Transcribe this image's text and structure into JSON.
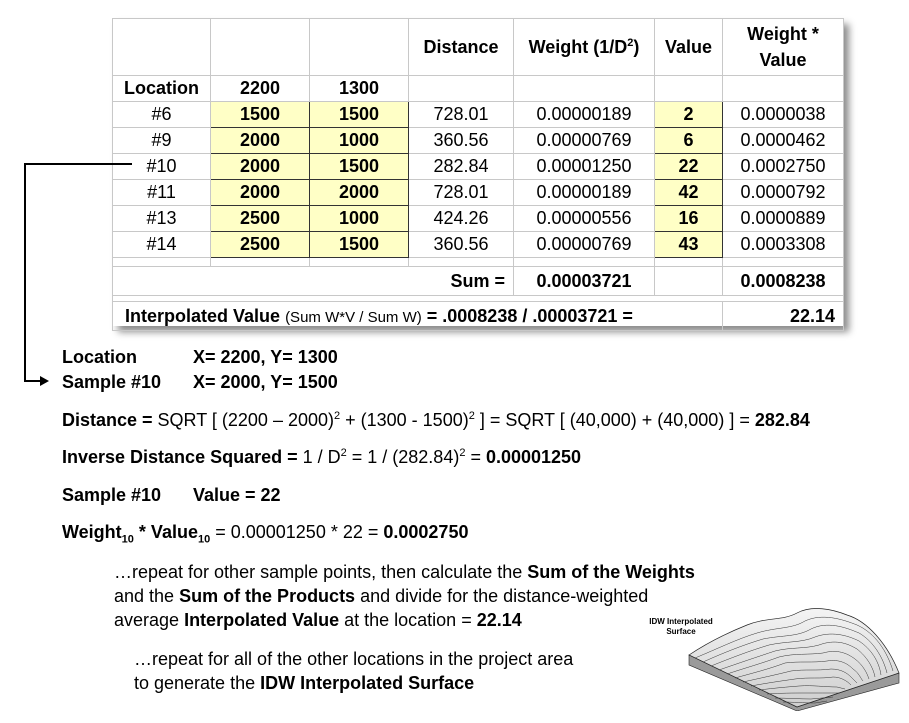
{
  "table": {
    "headers": {
      "distance": "Distance",
      "weight": "Weight (1/D",
      "weight_sup": "2",
      "weight_close": ")",
      "value": "Value",
      "wv_line1": "Weight *",
      "wv_line2": "Value"
    },
    "location_label": "Location",
    "location_x": "2200",
    "location_y": "1300",
    "rows": [
      {
        "id": "#6",
        "x": "1500",
        "y": "1500",
        "distance": "728.01",
        "weight": "0.00000189",
        "value": "2",
        "wv": "0.0000038"
      },
      {
        "id": "#9",
        "x": "2000",
        "y": "1000",
        "distance": "360.56",
        "weight": "0.00000769",
        "value": "6",
        "wv": "0.0000462"
      },
      {
        "id": "#10",
        "x": "2000",
        "y": "1500",
        "distance": "282.84",
        "weight": "0.00001250",
        "value": "22",
        "wv": "0.0002750"
      },
      {
        "id": "#11",
        "x": "2000",
        "y": "2000",
        "distance": "728.01",
        "weight": "0.00000189",
        "value": "42",
        "wv": "0.0000792"
      },
      {
        "id": "#13",
        "x": "2500",
        "y": "1000",
        "distance": "424.26",
        "weight": "0.00000556",
        "value": "16",
        "wv": "0.0000889"
      },
      {
        "id": "#14",
        "x": "2500",
        "y": "1500",
        "distance": "360.56",
        "weight": "0.00000769",
        "value": "43",
        "wv": "0.0003308"
      }
    ],
    "sum_label": "Sum =",
    "sum_weight": "0.00003721",
    "sum_wv": "0.0008238",
    "interp_label": "Interpolated Value",
    "interp_formula": "(Sum W*V / Sum W)",
    "interp_calc": "=  .0008238 / .00003721 =",
    "interp_result": "22.14"
  },
  "explain": {
    "location_label": "Location",
    "location_coords": "X= 2200, Y= 1300",
    "sample_label": "Sample #10",
    "sample_coords": "X= 2000, Y= 1500",
    "distance_label": "Distance =",
    "distance_a": " SQRT [ (2200 – 2000)",
    "distance_b": " + (1300 - 1500)",
    "distance_c": " ] = SQRT [ (40,000) + (40,000) ] = ",
    "distance_result": "282.84",
    "inv_label": "Inverse Distance Squared =",
    "inv_a": " 1 / D",
    "inv_b": " = 1 / (282.84)",
    "inv_c": " = ",
    "inv_result": "0.00001250",
    "sample_value_label": "Sample #10",
    "sample_value": "Value = 22",
    "wv_weight": "Weight",
    "wv_sub1": "10",
    "wv_star": " * Value",
    "wv_sub2": "10",
    "wv_calc": " = 0.00001250 * 22 = ",
    "wv_result": "0.0002750",
    "sup2": "2"
  },
  "para1": {
    "l1a": "…repeat for other sample points, then calculate the ",
    "l1b": "Sum of the Weights",
    "l2a": "and the ",
    "l2b": "Sum of the Products",
    "l2c": " and divide for the distance-weighted",
    "l3a": "average ",
    "l3b": "Interpolated Value",
    "l3c": " at the location = ",
    "l3d": "22.14"
  },
  "para2": {
    "l1": "…repeat for all of the other locations in the project area",
    "l2a": "to generate the ",
    "l2b": "IDW Interpolated Surface"
  },
  "surface": {
    "label1": "IDW Interpolated",
    "label2": "Surface"
  }
}
